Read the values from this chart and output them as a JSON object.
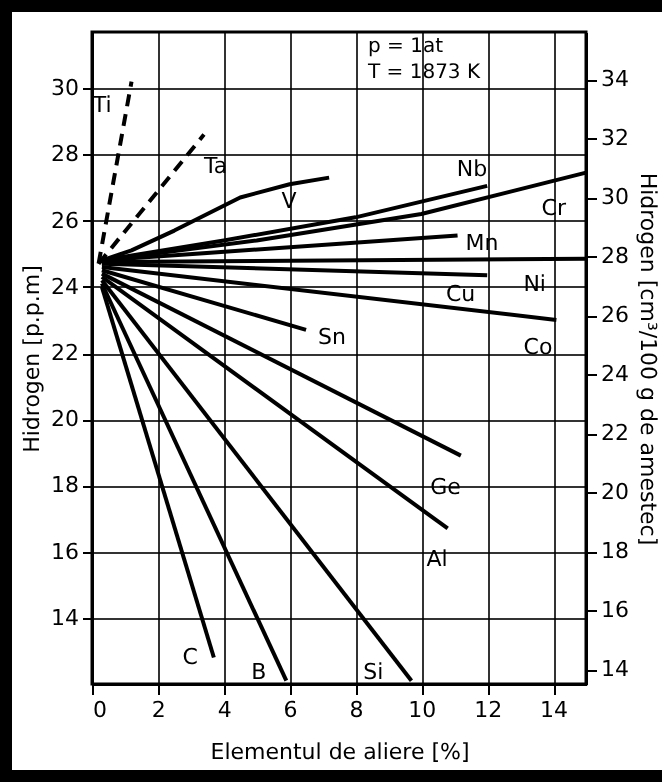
{
  "chart_data": {
    "type": "line",
    "xlabel": "Elementul de aliere [%]",
    "ylabel": "Hidrogen [p.p.m]",
    "y2label": "Hidrogen [cm³/100 g de amestec]",
    "annotations": [
      "p = 1at",
      "T = 1873 K"
    ],
    "xlim": [
      0,
      15
    ],
    "xticks": [
      0,
      2,
      4,
      6,
      8,
      10,
      12,
      14
    ],
    "ylim": [
      12,
      31.7
    ],
    "yticks": [
      14,
      16,
      18,
      20,
      22,
      24,
      26,
      28,
      30
    ],
    "y2lim": [
      13.5,
      35.6
    ],
    "y2ticks": [
      14,
      16,
      18,
      20,
      22,
      24,
      26,
      28,
      30,
      32,
      34
    ],
    "grid": true,
    "marker": "none",
    "series": [
      {
        "name": "Ti",
        "color": "#000000",
        "line_style": "dashed",
        "x": [
          0.2,
          1.2
        ],
        "values": [
          24.7,
          30.2
        ]
      },
      {
        "name": "Ta",
        "color": "#000000",
        "line_style": "dashed",
        "x": [
          0.2,
          3.4
        ],
        "values": [
          24.7,
          28.6
        ]
      },
      {
        "name": "V",
        "color": "#000000",
        "x": [
          0.3,
          1.2,
          2.5,
          4.5,
          6,
          7.2
        ],
        "values": [
          24.8,
          25.1,
          25.7,
          26.7,
          27.1,
          27.3
        ]
      },
      {
        "name": "Nb",
        "color": "#000000",
        "x": [
          0.3,
          4,
          8,
          12
        ],
        "values": [
          24.8,
          25.4,
          26.1,
          27.05
        ]
      },
      {
        "name": "Cr",
        "color": "#000000",
        "x": [
          0.3,
          5,
          10,
          15
        ],
        "values": [
          24.8,
          25.4,
          26.2,
          27.45
        ]
      },
      {
        "name": "Mn",
        "color": "#000000",
        "x": [
          0.3,
          11.1
        ],
        "values": [
          24.8,
          25.55
        ]
      },
      {
        "name": "Ni",
        "color": "#000000",
        "x": [
          0.3,
          15
        ],
        "values": [
          24.75,
          24.85
        ]
      },
      {
        "name": "Cu",
        "color": "#000000",
        "x": [
          0.3,
          12
        ],
        "values": [
          24.7,
          24.35
        ]
      },
      {
        "name": "Co",
        "color": "#000000",
        "x": [
          0.3,
          14.1
        ],
        "values": [
          24.6,
          23.0
        ]
      },
      {
        "name": "Sn",
        "color": "#000000",
        "x": [
          0.3,
          6.5
        ],
        "values": [
          24.5,
          22.7
        ]
      },
      {
        "name": "Ge",
        "color": "#000000",
        "x": [
          0.3,
          11.2
        ],
        "values": [
          24.4,
          18.9
        ]
      },
      {
        "name": "Al",
        "color": "#000000",
        "x": [
          0.3,
          10.8
        ],
        "values": [
          24.3,
          16.7
        ]
      },
      {
        "name": "Si",
        "color": "#000000",
        "x": [
          0.3,
          9.7
        ],
        "values": [
          24.2,
          12.1
        ]
      },
      {
        "name": "B",
        "color": "#000000",
        "x": [
          0.3,
          5.9
        ],
        "values": [
          24.1,
          12.1
        ]
      },
      {
        "name": "C",
        "color": "#000000",
        "x": [
          0.3,
          3.7
        ],
        "values": [
          24.0,
          12.8
        ]
      }
    ]
  }
}
